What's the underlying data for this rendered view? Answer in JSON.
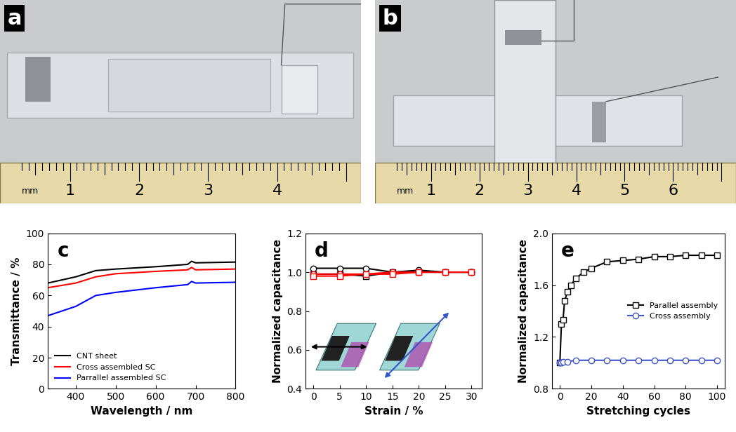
{
  "photos": [
    {
      "label": "a",
      "ruler": [
        "mm",
        "1",
        "2",
        "3",
        "4"
      ]
    },
    {
      "label": "b",
      "ruler": [
        "mm",
        "1",
        "2",
        "3",
        "4",
        "5",
        "6"
      ]
    }
  ],
  "chart_data": [
    {
      "type": "line",
      "annotation": "c",
      "x_label": "Wavelength / nm",
      "y_label": "Transmittance / %",
      "x": [
        330,
        400,
        450,
        500,
        600,
        680,
        690,
        700,
        800
      ],
      "series": [
        {
          "name": "CNT sheet",
          "color": "#000000",
          "line_style": "solid",
          "values": [
            68,
            72,
            76,
            77,
            78.5,
            80,
            82,
            81,
            81.5
          ]
        },
        {
          "name": "Cross assembled SC",
          "color": "#ff0000",
          "line_style": "solid",
          "values": [
            65,
            68,
            72,
            74,
            75.5,
            76.5,
            78,
            76.5,
            77
          ]
        },
        {
          "name": "Parrallel assembled SC",
          "color": "#0000ff",
          "line_style": "solid",
          "values": [
            47,
            53,
            60,
            62,
            65,
            67,
            69,
            68,
            68.5
          ]
        }
      ],
      "xlim": [
        330,
        800
      ],
      "xticks": [
        400,
        500,
        600,
        700,
        800
      ],
      "ylim": [
        0,
        100
      ],
      "yticks": [
        0,
        20,
        40,
        60,
        80,
        100
      ],
      "legend": "lower left"
    },
    {
      "type": "line",
      "annotation": "d",
      "x_label": "Strain / %",
      "y_label": "Normalized capacitance",
      "x": [
        0,
        5,
        10,
        15,
        20,
        25,
        30
      ],
      "series": [
        {
          "color": "#000000",
          "marker": "circle",
          "line_style": "solid",
          "values": [
            1.02,
            1.02,
            1.02,
            1.0,
            1.01,
            1.0,
            1.0
          ]
        },
        {
          "color": "#000000",
          "marker": "square",
          "line_style": "solid",
          "values": [
            0.99,
            0.99,
            0.98,
            1.0,
            1.0,
            1.0,
            1.0
          ]
        },
        {
          "color": "#ff0000",
          "marker": "circle",
          "line_style": "solid",
          "values": [
            0.99,
            0.99,
            0.99,
            1.0,
            1.0,
            1.0,
            1.0
          ]
        },
        {
          "color": "#ff0000",
          "marker": "square",
          "line_style": "solid",
          "values": [
            0.98,
            0.98,
            0.99,
            0.99,
            1.0,
            1.0,
            1.0
          ]
        }
      ],
      "xlim": [
        -1.5,
        32
      ],
      "xticks": [
        0,
        5,
        10,
        15,
        20,
        25,
        30
      ],
      "ylim": [
        0.4,
        1.2
      ],
      "yticks": [
        0.4,
        0.6,
        0.8,
        1.0,
        1.2
      ]
    },
    {
      "type": "line",
      "annotation": "e",
      "x_label": "Stretching cycles",
      "y_label": "Normalized capacitance",
      "series": [
        {
          "name": "Parallel assembly",
          "color": "#000000",
          "marker": "square",
          "line_style": "solid",
          "x": [
            0,
            1,
            2,
            3,
            5,
            7,
            10,
            15,
            20,
            30,
            40,
            50,
            60,
            70,
            80,
            90,
            100
          ],
          "values": [
            1.0,
            1.3,
            1.33,
            1.48,
            1.55,
            1.6,
            1.65,
            1.7,
            1.73,
            1.78,
            1.79,
            1.8,
            1.82,
            1.82,
            1.83,
            1.83,
            1.83
          ]
        },
        {
          "name": "Cross assembly",
          "color": "#3f51c8",
          "marker": "circle",
          "line_style": "solid",
          "x": [
            0,
            1,
            2,
            5,
            10,
            20,
            30,
            40,
            50,
            60,
            70,
            80,
            90,
            100
          ],
          "values": [
            1.0,
            1.0,
            1.01,
            1.01,
            1.02,
            1.02,
            1.02,
            1.02,
            1.02,
            1.02,
            1.02,
            1.02,
            1.02,
            1.02
          ]
        }
      ],
      "xlim": [
        -5,
        105
      ],
      "xticks": [
        0,
        20,
        40,
        60,
        80,
        100
      ],
      "ylim": [
        0.8,
        2.0
      ],
      "yticks": [
        0.8,
        1.2,
        1.6,
        2.0
      ],
      "legend": "center right"
    }
  ]
}
